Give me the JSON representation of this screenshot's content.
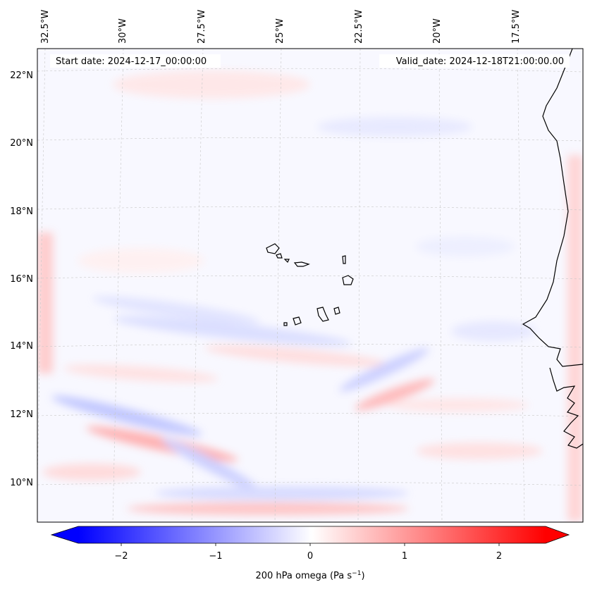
{
  "map": {
    "start_date": "Start date: 2024-12-17_00:00:00",
    "valid_date": "Valid_date: 2024-12-18T21:00:00.00",
    "lon_labels": [
      "32.5°W",
      "30°W",
      "27.5°W",
      "25°W",
      "22.5°W",
      "20°W",
      "17.5°W"
    ],
    "lat_labels": [
      "22°N",
      "20°N",
      "18°N",
      "16°N",
      "14°N",
      "12°N",
      "10°N"
    ],
    "colorbar": {
      "ticks": [
        "−2",
        "−1",
        "0",
        "1",
        "2"
      ],
      "tick_values": [
        -2,
        -1,
        0,
        1,
        2
      ],
      "range": [
        -2.5,
        2.5
      ],
      "label_main": "200 hPa omega (Pa s",
      "label_sup": "−1",
      "label_end": ")",
      "cmap": "bwr",
      "neg_color": "#0000ff",
      "zero_color": "#ffffff",
      "pos_color": "#ff0000"
    },
    "coastline_color": "#000000",
    "gridline_color": "#c8c8c8"
  }
}
